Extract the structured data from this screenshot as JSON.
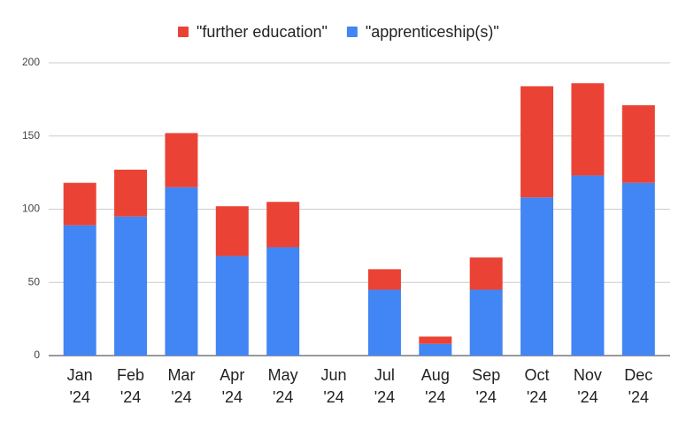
{
  "chart_data": {
    "type": "stacked_bar",
    "categories": [
      "Jan '24",
      "Feb '24",
      "Mar '24",
      "Apr '24",
      "May '24",
      "Jun '24",
      "Jul '24",
      "Aug '24",
      "Sep '24",
      "Oct '24",
      "Nov '24",
      "Dec '24"
    ],
    "series": [
      {
        "name": "\"further education\"",
        "color": "#ea4335",
        "values": [
          29,
          32,
          37,
          34,
          31,
          0,
          14,
          5,
          22,
          76,
          63,
          53
        ]
      },
      {
        "name": "\"apprenticeship(s)\"",
        "color": "#4285f4",
        "values": [
          89,
          95,
          115,
          68,
          74,
          0,
          45,
          8,
          45,
          108,
          123,
          118
        ]
      }
    ],
    "ylim": [
      0,
      200
    ],
    "yticks": [
      0,
      50,
      100,
      150,
      200
    ],
    "grid": true,
    "legend": "top"
  }
}
